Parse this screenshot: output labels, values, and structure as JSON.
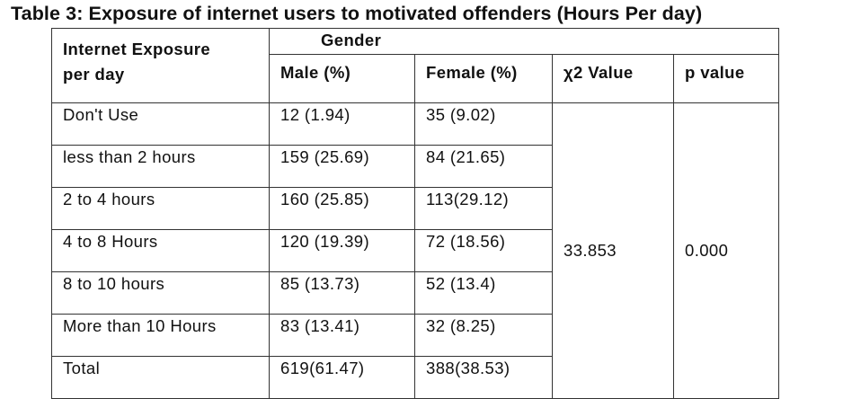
{
  "title": "Table 3: Exposure of internet users to motivated offenders (Hours Per day)",
  "headers": {
    "exposure_line1": "Internet Exposure",
    "exposure_line2": "per day",
    "gender": "Gender",
    "male": "Male (%)",
    "female": "Female (%)",
    "chi2": "χ2 Value",
    "p": "p value"
  },
  "rows": [
    {
      "label": "Don't Use",
      "male": "12     (1.94)",
      "female": "35  (9.02)"
    },
    {
      "label": "less than 2 hours",
      "male": "159 (25.69)",
      "female": "84 (21.65)"
    },
    {
      "label": "2 to 4 hours",
      "male": "160 (25.85)",
      "female": "113(29.12)"
    },
    {
      "label": "4 to 8 Hours",
      "male": "120 (19.39)",
      "female": "72 (18.56)"
    },
    {
      "label": "8 to 10 hours",
      "male": "85   (13.73)",
      "female": "52 (13.4)"
    },
    {
      "label": "More than 10 Hours",
      "male": "83   (13.41)",
      "female": "32 (8.25)"
    },
    {
      "label": "Total",
      "male": "619(61.47)",
      "female": "388(38.53)"
    }
  ],
  "stats": {
    "chi2_value": "33.853",
    "p_value": "0.000"
  }
}
